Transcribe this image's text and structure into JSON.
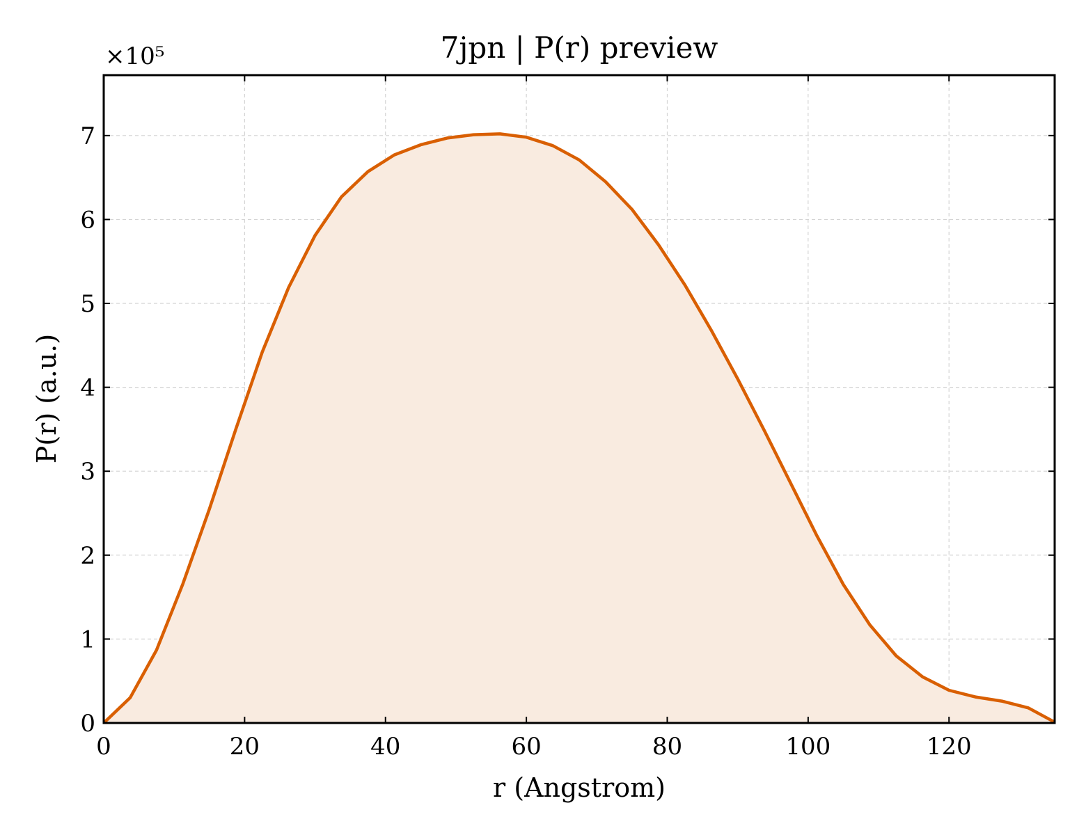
{
  "chart_data": {
    "type": "area",
    "title": "7jpn | P(r) preview",
    "xlabel": "r (Angstrom)",
    "ylabel": "P(r) (a.u.)",
    "y_multiplier_label": "×10⁵",
    "y_scale": 100000,
    "xlim": [
      0,
      135
    ],
    "ylim": [
      0,
      7.72
    ],
    "x_ticks": [
      0,
      20,
      40,
      60,
      80,
      100,
      120
    ],
    "y_ticks": [
      0,
      1,
      2,
      3,
      4,
      5,
      6,
      7
    ],
    "grid": true,
    "line_color": "#d95f02",
    "fill_color": "#f9ebe0",
    "x": [
      0,
      3.75,
      7.5,
      11.25,
      15,
      18.75,
      22.5,
      26.25,
      30,
      33.75,
      37.5,
      41.25,
      45,
      48.75,
      52.5,
      56.25,
      60,
      63.75,
      67.5,
      71.25,
      75,
      78.75,
      82.5,
      86.25,
      90,
      93.75,
      97.5,
      101.25,
      105,
      108.75,
      112.5,
      116.25,
      120,
      123.75,
      127.5,
      131.25,
      135
    ],
    "y": [
      0,
      0.3,
      0.87,
      1.66,
      2.55,
      3.5,
      4.42,
      5.19,
      5.81,
      6.27,
      6.57,
      6.77,
      6.89,
      6.97,
      7.01,
      7.02,
      6.98,
      6.88,
      6.71,
      6.45,
      6.12,
      5.7,
      5.22,
      4.68,
      4.1,
      3.49,
      2.86,
      2.23,
      1.65,
      1.17,
      0.8,
      0.55,
      0.39,
      0.31,
      0.26,
      0.18,
      0.01
    ]
  }
}
